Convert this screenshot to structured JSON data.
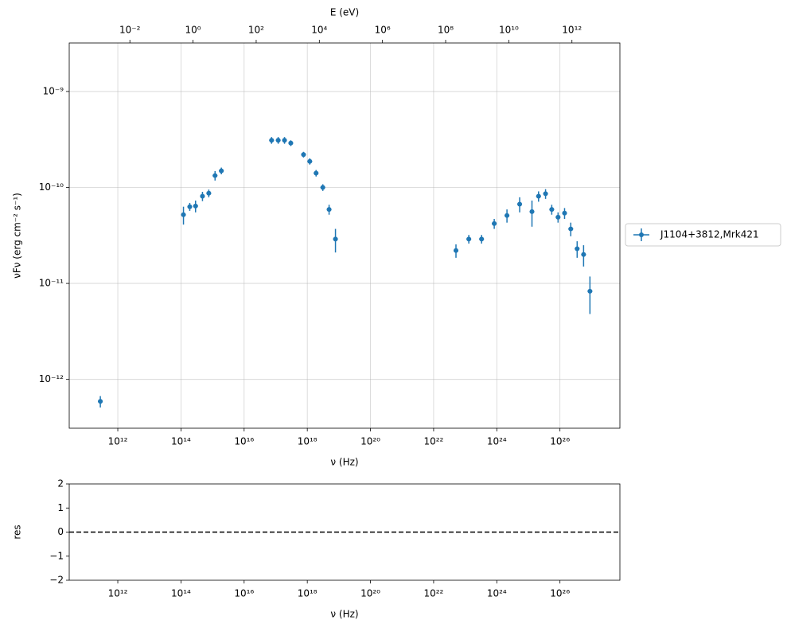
{
  "chart_data": [
    {
      "type": "errorbar-scatter",
      "xlabel": "ν  (Hz)",
      "ylabel": "νFν  (erg cm⁻²  s⁻¹)",
      "x2label": "E (eV)",
      "xscale": "log",
      "yscale": "log",
      "grid": true,
      "legend": "outside right",
      "xlim": [
        29000000000.0,
        7.9e+27
      ],
      "ylim": [
        3.1e-13,
        3.2e-09
      ],
      "xticks": [
        {
          "value": 1000000000000.0,
          "label": "10¹²"
        },
        {
          "value": 100000000000000.0,
          "label": "10¹⁴"
        },
        {
          "value": 1e+16,
          "label": "10¹⁶"
        },
        {
          "value": 1e+18,
          "label": "10¹⁸"
        },
        {
          "value": 1e+20,
          "label": "10²⁰"
        },
        {
          "value": 1e+22,
          "label": "10²²"
        },
        {
          "value": 1e+24,
          "label": "10²⁴"
        },
        {
          "value": 1e+26,
          "label": "10²⁶"
        }
      ],
      "yticks": [
        {
          "value": 1e-12,
          "label": "10⁻¹²"
        },
        {
          "value": 1e-11,
          "label": "10⁻¹¹"
        },
        {
          "value": 1e-10,
          "label": "10⁻¹⁰"
        },
        {
          "value": 1e-09,
          "label": "10⁻⁹"
        }
      ],
      "x2lim": [
        0.00012,
        33000000000000.0
      ],
      "x2ticks": [
        {
          "value": 0.01,
          "label": "10⁻²"
        },
        {
          "value": 1,
          "label": "10⁰"
        },
        {
          "value": 100,
          "label": "10²"
        },
        {
          "value": 10000,
          "label": "10⁴"
        },
        {
          "value": 1000000.0,
          "label": "10⁶"
        },
        {
          "value": 100000000.0,
          "label": "10⁸"
        },
        {
          "value": 10000000000.0,
          "label": "10¹⁰"
        },
        {
          "value": 1000000000000.0,
          "label": "10¹²"
        }
      ],
      "series": [
        {
          "name": "J1104+3812,Mrk421",
          "color": "#1f77b4",
          "x": [
            280000000000.0,
            120000000000000.0,
            190000000000000.0,
            290000000000000.0,
            480000000000000.0,
            760000000000000.0,
            1200000000000000.0,
            1900000000000000.0,
            7.4e+16,
            1.2e+17,
            1.9e+17,
            3e+17,
            7.6e+17,
            1.2e+18,
            1.9e+18,
            3.1e+18,
            4.9e+18,
            7.8e+18,
            5.1e+22,
            1.3e+23,
            3.3e+23,
            8.3e+23,
            2.1e+24,
            5.3e+24,
            1.3e+25,
            2.1e+25,
            3.5e+25,
            5.5e+25,
            8.7e+25,
            1.4e+26,
            2.2e+26,
            3.5e+26,
            5.6e+26,
            8.9e+26
          ],
          "values": [
            5.9e-13,
            5.2e-11,
            6.3e-11,
            6.4e-11,
            8.1e-11,
            8.7e-11,
            1.33e-10,
            1.49e-10,
            3.1e-10,
            3.1e-10,
            3.1e-10,
            2.9e-10,
            2.2e-10,
            1.87e-10,
            1.41e-10,
            1e-10,
            5.9e-11,
            2.9e-11,
            2.2e-11,
            2.9e-11,
            2.9e-11,
            4.2e-11,
            5.1e-11,
            6.7e-11,
            5.6e-11,
            8.1e-11,
            8.6e-11,
            5.9e-11,
            4.9e-11,
            5.4e-11,
            3.7e-11,
            2.3e-11,
            2e-11,
            8.3e-12
          ],
          "errors": [
            8e-14,
            1.1e-11,
            6e-12,
            9e-12,
            9e-12,
            8e-12,
            1.5e-11,
            1.2e-11,
            2.5e-11,
            2.5e-11,
            2.5e-11,
            2e-11,
            1.5e-11,
            1.4e-11,
            1.1e-11,
            8e-12,
            7e-12,
            8e-12,
            3.5e-12,
            3e-12,
            3e-12,
            5e-12,
            8e-12,
            1.2e-11,
            1.7e-11,
            1e-11,
            1e-11,
            7e-12,
            6e-12,
            7e-12,
            6e-12,
            4.5e-12,
            5e-12,
            3.5e-12
          ]
        }
      ]
    },
    {
      "type": "residual",
      "xlabel": "ν  (Hz)",
      "ylabel": "res",
      "xscale": "log",
      "grid": false,
      "xlim": [
        29000000000.0,
        7.9e+27
      ],
      "ylim": [
        -2,
        2
      ],
      "xticks": [
        {
          "value": 1000000000000.0,
          "label": "10¹²"
        },
        {
          "value": 100000000000000.0,
          "label": "10¹⁴"
        },
        {
          "value": 1e+16,
          "label": "10¹⁶"
        },
        {
          "value": 1e+18,
          "label": "10¹⁸"
        },
        {
          "value": 1e+20,
          "label": "10²⁰"
        },
        {
          "value": 1e+22,
          "label": "10²²"
        },
        {
          "value": 1e+24,
          "label": "10²⁴"
        },
        {
          "value": 1e+26,
          "label": "10²⁶"
        }
      ],
      "yticks": [
        {
          "value": -2,
          "label": "−2"
        },
        {
          "value": -1,
          "label": "−1"
        },
        0,
        1,
        2
      ],
      "hline": 0
    }
  ]
}
